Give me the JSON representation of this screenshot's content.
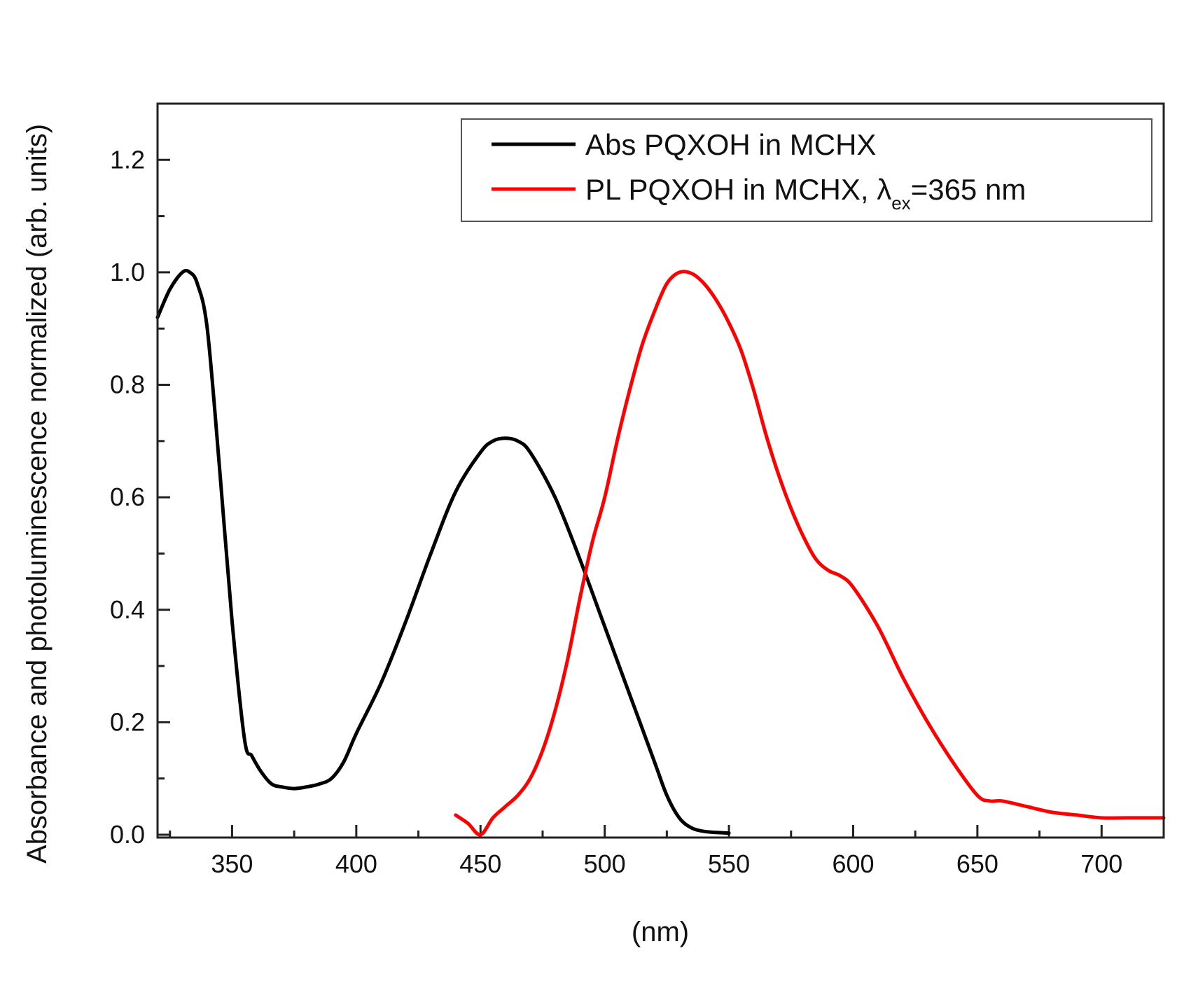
{
  "chart_data": {
    "type": "line",
    "title": "",
    "xlabel": "(nm)",
    "ylabel": "Absorbance and photoluminescence normalized (arb. units)",
    "xlim": [
      320,
      725
    ],
    "ylim": [
      -0.005,
      1.3
    ],
    "xticks": [
      350,
      400,
      450,
      500,
      550,
      600,
      650,
      700
    ],
    "xtick_labels": [
      "350",
      "400",
      "450",
      "500",
      "550",
      "600",
      "650",
      "700"
    ],
    "yticks": [
      0.0,
      0.2,
      0.4,
      0.6,
      0.8,
      1.0,
      1.2
    ],
    "ytick_labels": [
      "0.0",
      "0.2",
      "0.4",
      "0.6",
      "0.8",
      "1.0",
      "1.2"
    ],
    "grid": false,
    "legend_position": "top-right",
    "series": [
      {
        "name": "Abs PQXOH in MCHX",
        "legend_label": "Abs PQXOH in MCHX",
        "color": "#000000",
        "x": [
          320,
          325,
          330,
          333,
          336,
          340,
          345,
          350,
          355,
          358,
          362,
          366,
          370,
          375,
          380,
          385,
          390,
          395,
          400,
          410,
          420,
          430,
          440,
          450,
          455,
          460,
          465,
          470,
          480,
          490,
          500,
          510,
          520,
          525,
          530,
          535,
          540,
          545,
          550
        ],
        "y": [
          0.92,
          0.97,
          1.0,
          1.0,
          0.98,
          0.9,
          0.65,
          0.38,
          0.17,
          0.14,
          0.11,
          0.09,
          0.085,
          0.082,
          0.085,
          0.09,
          0.1,
          0.13,
          0.18,
          0.27,
          0.38,
          0.5,
          0.61,
          0.68,
          0.7,
          0.705,
          0.7,
          0.68,
          0.6,
          0.49,
          0.37,
          0.25,
          0.13,
          0.07,
          0.03,
          0.012,
          0.006,
          0.004,
          0.003
        ]
      },
      {
        "name": "PL PQXOH in MCHX, λex=365 nm",
        "legend_label": "PL PQXOH in MCHX, λ",
        "legend_subscript": "ex",
        "legend_suffix": "=365 nm",
        "color": "#ff0000",
        "x": [
          440,
          445,
          450,
          455,
          460,
          465,
          470,
          475,
          480,
          485,
          490,
          495,
          500,
          505,
          510,
          515,
          520,
          525,
          530,
          535,
          540,
          545,
          550,
          555,
          560,
          565,
          570,
          575,
          580,
          585,
          590,
          595,
          600,
          610,
          620,
          630,
          640,
          650,
          655,
          660,
          670,
          680,
          690,
          700,
          710,
          720,
          725
        ],
        "y": [
          0.035,
          0.02,
          0.0,
          0.03,
          0.05,
          0.07,
          0.1,
          0.15,
          0.22,
          0.31,
          0.42,
          0.52,
          0.6,
          0.7,
          0.79,
          0.87,
          0.93,
          0.98,
          1.0,
          0.998,
          0.98,
          0.95,
          0.91,
          0.86,
          0.79,
          0.71,
          0.64,
          0.58,
          0.53,
          0.49,
          0.47,
          0.46,
          0.44,
          0.37,
          0.28,
          0.2,
          0.13,
          0.07,
          0.06,
          0.06,
          0.05,
          0.04,
          0.035,
          0.03,
          0.03,
          0.03,
          0.03
        ]
      }
    ]
  }
}
